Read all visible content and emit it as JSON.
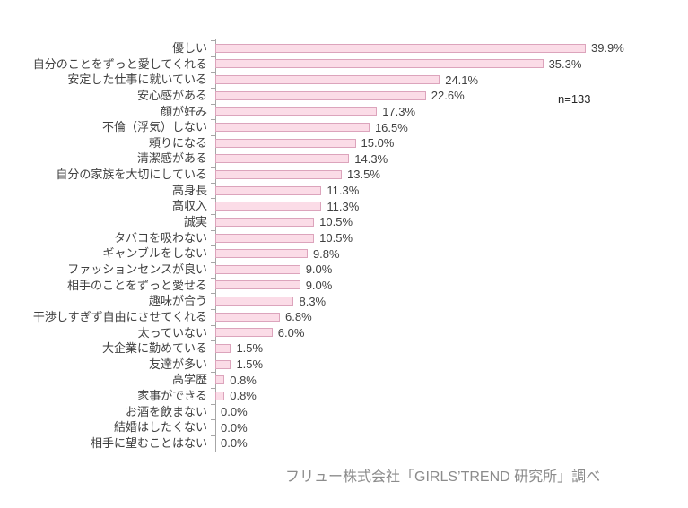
{
  "chart_data": {
    "type": "bar",
    "orientation": "horizontal",
    "title": "",
    "xlabel": "",
    "ylabel": "",
    "xlim": [
      0,
      40
    ],
    "grid": false,
    "legend": false,
    "annotation": "n=133",
    "source": "フリュー株式会社「GIRLS’TREND 研究所」調べ",
    "categories": [
      "優しい",
      "自分のことをずっと愛してくれる",
      "安定した仕事に就いている",
      "安心感がある",
      "顔が好み",
      "不倫（浮気）しない",
      "頼りになる",
      "清潔感がある",
      "自分の家族を大切にしている",
      "高身長",
      "高収入",
      "誠実",
      "タバコを吸わない",
      "ギャンブルをしない",
      "ファッションセンスが良い",
      "相手のことをずっと愛せる",
      "趣味が合う",
      "干渉しすぎず自由にさせてくれる",
      "太っていない",
      "大企業に勤めている",
      "友達が多い",
      "高学歴",
      "家事ができる",
      "お酒を飲まない",
      "結婚はしたくない",
      "相手に望むことはない"
    ],
    "values": [
      39.9,
      35.3,
      24.1,
      22.6,
      17.3,
      16.5,
      15.0,
      14.3,
      13.5,
      11.3,
      11.3,
      10.5,
      10.5,
      9.8,
      9.0,
      9.0,
      8.3,
      6.8,
      6.0,
      1.5,
      1.5,
      0.8,
      0.8,
      0.0,
      0.0,
      0.0
    ],
    "value_labels": [
      "39.9%",
      "35.3%",
      "24.1%",
      "22.6%",
      "17.3%",
      "16.5%",
      "15.0%",
      "14.3%",
      "13.5%",
      "11.3%",
      "11.3%",
      "10.5%",
      "10.5%",
      "9.8%",
      "9.0%",
      "9.0%",
      "8.3%",
      "6.8%",
      "6.0%",
      "1.5%",
      "1.5%",
      "0.8%",
      "0.8%",
      "0.0%",
      "0.0%",
      "0.0%"
    ],
    "colors": {
      "bar_fill": "#fbdce7",
      "bar_border": "#dca4bc",
      "axis": "#a6a6a6",
      "text": "#3f3f3f",
      "source_text": "#8c8c8c"
    }
  }
}
